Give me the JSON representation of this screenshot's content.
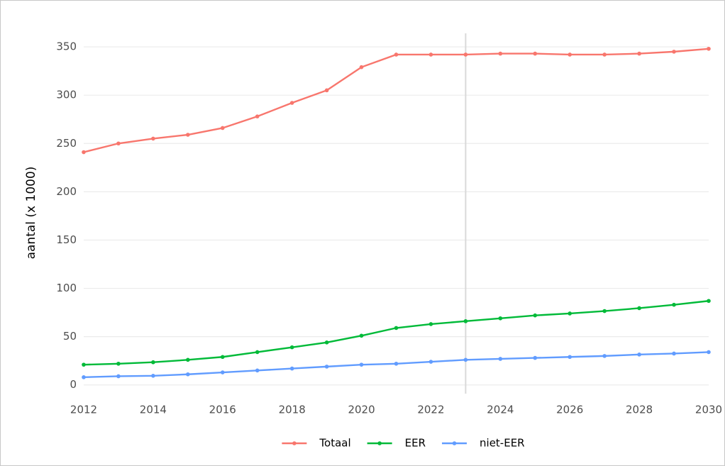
{
  "chart_data": {
    "type": "line",
    "x": [
      2012,
      2013,
      2014,
      2015,
      2016,
      2017,
      2018,
      2019,
      2020,
      2021,
      2022,
      2023,
      2024,
      2025,
      2026,
      2027,
      2028,
      2029,
      2030
    ],
    "series": [
      {
        "name": "Totaal",
        "color": "#F8766D",
        "values": [
          241,
          250,
          255,
          259,
          266,
          278,
          292,
          305,
          329,
          342,
          342,
          342,
          343,
          343,
          342,
          342,
          343,
          345,
          348
        ]
      },
      {
        "name": "EER",
        "color": "#00BA38",
        "values": [
          21,
          22,
          23.5,
          26,
          29,
          34,
          39,
          44,
          51,
          59,
          63,
          66,
          69,
          72,
          74,
          76.5,
          79.5,
          83,
          87
        ]
      },
      {
        "name": "niet-EER",
        "color": "#619CFF",
        "values": [
          8,
          9,
          9.5,
          11,
          13,
          15,
          17,
          19,
          21,
          22,
          24,
          26,
          27,
          28,
          29,
          30,
          31.5,
          32.5,
          34
        ]
      }
    ],
    "ylabel": "aantal (x 1000)",
    "xlim": [
      2012,
      2030
    ],
    "xticks": [
      2012,
      2014,
      2016,
      2018,
      2020,
      2022,
      2024,
      2026,
      2028,
      2030
    ],
    "ylim": [
      -9,
      364
    ],
    "yticks": [
      0,
      50,
      100,
      150,
      200,
      250,
      300,
      350
    ],
    "grid": true,
    "vline": 2023,
    "legend": "bottom"
  }
}
